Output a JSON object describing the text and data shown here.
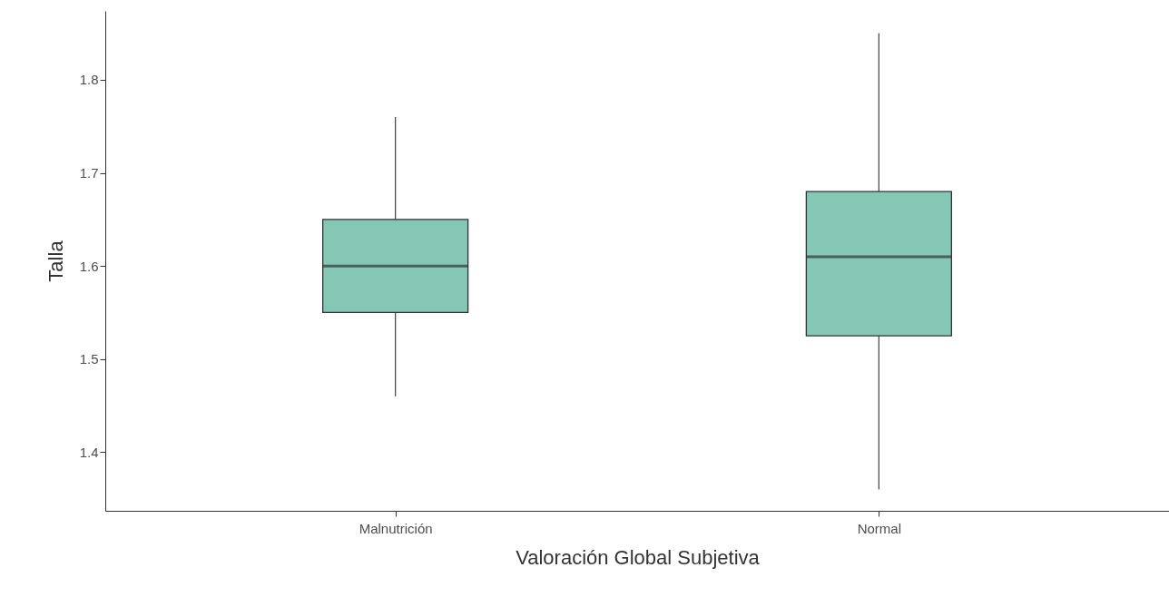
{
  "chart_data": {
    "type": "box",
    "xlabel": "Valoración Global Subjetiva",
    "ylabel": "Talla",
    "categories": [
      "Malnutrición",
      "Normal"
    ],
    "series": [
      {
        "color": "#83c7b4",
        "boxes": [
          {
            "low": 1.46,
            "q1": 1.55,
            "median": 1.6,
            "q3": 1.65,
            "high": 1.76
          },
          {
            "low": 1.36,
            "q1": 1.525,
            "median": 1.61,
            "q3": 1.68,
            "high": 1.85
          }
        ]
      }
    ],
    "ylim": [
      1.337,
      1.874
    ],
    "yticks": [
      1.4,
      1.5,
      1.6,
      1.7,
      1.8
    ]
  }
}
